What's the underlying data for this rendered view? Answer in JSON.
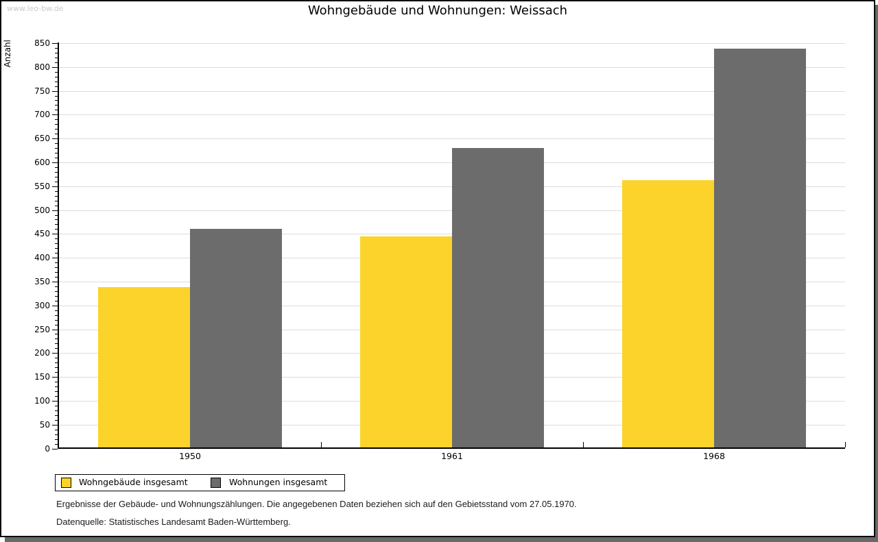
{
  "window": {
    "url_watermark": "www.leo-bw.de"
  },
  "title": "Wohngebäude und Wohnungen: Weissach",
  "chart_data": {
    "type": "bar",
    "title": "Wohngebäude und Wohnungen: Weissach",
    "categories": [
      "1950",
      "1961",
      "1968"
    ],
    "series": [
      {
        "name": "Wohngebäude insgesamt",
        "color": "#fcd32b",
        "values": [
          338,
          445,
          562
        ]
      },
      {
        "name": "Wohnungen insgesamt",
        "color": "#6c6c6c",
        "values": [
          460,
          630,
          838
        ]
      }
    ],
    "xlabel": "",
    "ylabel": "Anzahl",
    "ylim": [
      0,
      850
    ],
    "ytick_step": 50,
    "yminor_step": 10,
    "grid": true,
    "legend_position": "bottom-left",
    "bar_color_hex_yellow": "#fcd32b",
    "bar_color_hex_gray": "#6c6c6c",
    "gridline_color": "#dcdcdc"
  },
  "footer": {
    "line1": "Ergebnisse der Gebäude- und Wohnungszählungen. Die angegebenen Daten beziehen sich auf den Gebietsstand vom 27.05.1970.",
    "line2": "Datenquelle: Statistisches Landesamt Baden-Württemberg."
  }
}
